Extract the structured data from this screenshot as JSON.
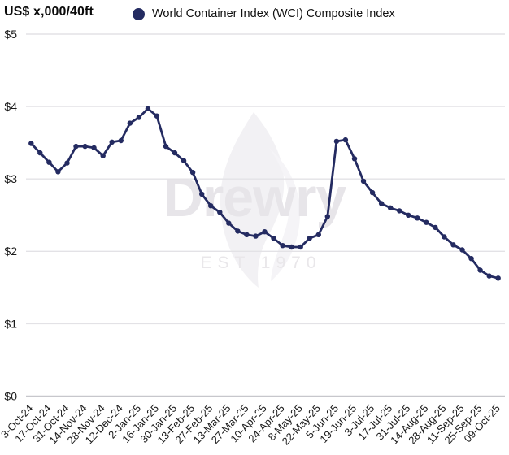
{
  "header": {
    "unit_label": "US$ x,000/40ft"
  },
  "legend": {
    "label": "World Container Index (WCI) Composite Index",
    "marker_color": "#242b61"
  },
  "watermark": {
    "brand": "Drewry",
    "established": "EST 1970"
  },
  "chart_data": {
    "type": "line",
    "title": "World Container Index (WCI) Composite Index",
    "ylabel": "US$ x,000/40ft",
    "units": "US$ thousands per 40ft container",
    "ylim": [
      0,
      5
    ],
    "y_tick_labels": [
      "$0",
      "$1",
      "$2",
      "$3",
      "$4",
      "$5"
    ],
    "grid": "horizontal",
    "legend_position": "top",
    "series_color": "#242b61",
    "gridline_color": "#e3e2e6",
    "axisline_color": "#c7c7cc",
    "tick_label_color": "#1a1a1a",
    "label_every_n_points": 2,
    "x_labels": [
      "3-Oct-24",
      "17-Oct-24",
      "31-Oct-24",
      "14-Nov-24",
      "28-Nov-24",
      "12-Dec-24",
      "2-Jan-25",
      "16-Jan-25",
      "30-Jan-25",
      "13-Feb-25",
      "27-Feb-25",
      "13-Mar-25",
      "27-Mar-25",
      "10-Apr-25",
      "24-Apr-25",
      "8-May-25",
      "22-May-25",
      "5-Jun-25",
      "19-Jun-25",
      "3-Jul-25",
      "17-Jul-25",
      "31-Jul-25",
      "14-Aug-25",
      "28-Aug-25",
      "11-Sep-25",
      "25-Sep-25",
      "09-Oct-25"
    ],
    "values": [
      3.49,
      3.36,
      3.23,
      3.1,
      3.22,
      3.45,
      3.45,
      3.43,
      3.32,
      3.51,
      3.53,
      3.77,
      3.85,
      3.97,
      3.87,
      3.45,
      3.36,
      3.25,
      3.09,
      2.79,
      2.63,
      2.54,
      2.39,
      2.28,
      2.23,
      2.21,
      2.27,
      2.18,
      2.08,
      2.06,
      2.06,
      2.18,
      2.23,
      2.48,
      3.52,
      3.54,
      3.28,
      2.97,
      2.81,
      2.66,
      2.6,
      2.56,
      2.5,
      2.46,
      2.4,
      2.33,
      2.2,
      2.09,
      2.02,
      1.9,
      1.74,
      1.66,
      1.63
    ]
  }
}
